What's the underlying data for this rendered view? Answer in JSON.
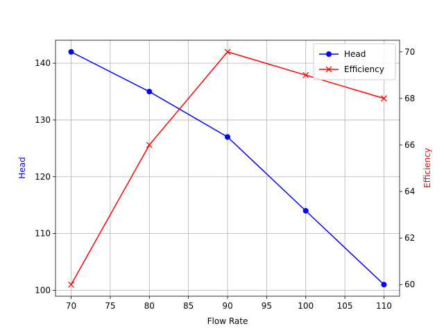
{
  "chart_data": {
    "type": "line",
    "x_label": "Flow Rate",
    "y_label": "Head",
    "y2_label": "Efficiency",
    "x": [
      70,
      80,
      90,
      100,
      110
    ],
    "series": [
      {
        "name": "Head",
        "color": "#0000ff",
        "marker": "o",
        "values": [
          142,
          135,
          127,
          114,
          101
        ]
      },
      {
        "name": "Efficiency",
        "color": "#ff0000",
        "marker": "x",
        "axis": "y2",
        "values": [
          60,
          66,
          70,
          69,
          68
        ]
      }
    ],
    "xlim": [
      68,
      112
    ],
    "xticks": [
      70,
      75,
      80,
      85,
      90,
      95,
      100,
      105,
      110
    ],
    "ylim": [
      98.95,
      144.05
    ],
    "yticks": [
      100,
      110,
      120,
      130,
      140
    ],
    "y2lim": [
      59.5,
      70.5
    ],
    "y2ticks": [
      60,
      62,
      64,
      66,
      68,
      70
    ],
    "grid": true,
    "legend": "upper right"
  }
}
